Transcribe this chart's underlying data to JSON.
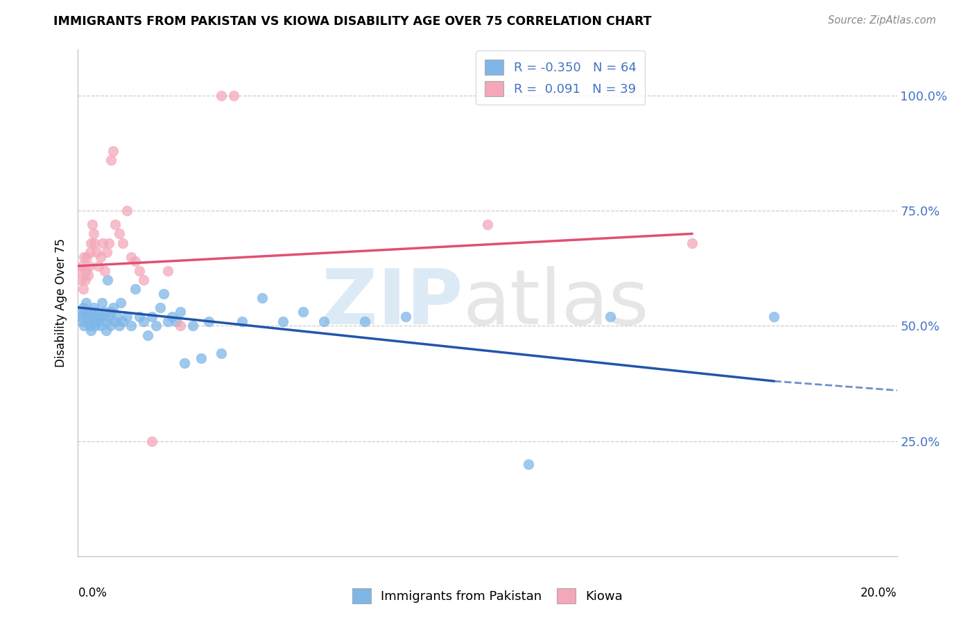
{
  "title": "IMMIGRANTS FROM PAKISTAN VS KIOWA DISABILITY AGE OVER 75 CORRELATION CHART",
  "source": "Source: ZipAtlas.com",
  "ylabel": "Disability Age Over 75",
  "ytick_labels": [
    "25.0%",
    "50.0%",
    "75.0%",
    "100.0%"
  ],
  "ytick_values": [
    25,
    50,
    75,
    100
  ],
  "xlim": [
    0,
    20
  ],
  "ylim": [
    0,
    110
  ],
  "legend_blue_r": "-0.350",
  "legend_blue_n": "64",
  "legend_pink_r": "0.091",
  "legend_pink_n": "39",
  "blue_color": "#7EB6E8",
  "pink_color": "#F4A7B9",
  "blue_line_color": "#2255AA",
  "pink_line_color": "#E05070",
  "blue_dots": [
    [
      0.05,
      53
    ],
    [
      0.08,
      52
    ],
    [
      0.1,
      51
    ],
    [
      0.12,
      54
    ],
    [
      0.15,
      50
    ],
    [
      0.18,
      53
    ],
    [
      0.2,
      55
    ],
    [
      0.22,
      52
    ],
    [
      0.25,
      51
    ],
    [
      0.28,
      50
    ],
    [
      0.3,
      53
    ],
    [
      0.32,
      49
    ],
    [
      0.35,
      52
    ],
    [
      0.38,
      54
    ],
    [
      0.4,
      51
    ],
    [
      0.42,
      50
    ],
    [
      0.45,
      53
    ],
    [
      0.48,
      51
    ],
    [
      0.5,
      52
    ],
    [
      0.55,
      50
    ],
    [
      0.58,
      55
    ],
    [
      0.6,
      52
    ],
    [
      0.65,
      53
    ],
    [
      0.68,
      49
    ],
    [
      0.7,
      51
    ],
    [
      0.72,
      60
    ],
    [
      0.75,
      52
    ],
    [
      0.78,
      50
    ],
    [
      0.8,
      53
    ],
    [
      0.85,
      54
    ],
    [
      0.9,
      51
    ],
    [
      0.95,
      52
    ],
    [
      1.0,
      50
    ],
    [
      1.05,
      55
    ],
    [
      1.1,
      51
    ],
    [
      1.2,
      52
    ],
    [
      1.3,
      50
    ],
    [
      1.4,
      58
    ],
    [
      1.5,
      52
    ],
    [
      1.6,
      51
    ],
    [
      1.7,
      48
    ],
    [
      1.8,
      52
    ],
    [
      1.9,
      50
    ],
    [
      2.0,
      54
    ],
    [
      2.1,
      57
    ],
    [
      2.2,
      51
    ],
    [
      2.3,
      52
    ],
    [
      2.4,
      51
    ],
    [
      2.5,
      53
    ],
    [
      2.6,
      42
    ],
    [
      2.8,
      50
    ],
    [
      3.0,
      43
    ],
    [
      3.2,
      51
    ],
    [
      3.5,
      44
    ],
    [
      4.0,
      51
    ],
    [
      4.5,
      56
    ],
    [
      5.0,
      51
    ],
    [
      5.5,
      53
    ],
    [
      6.0,
      51
    ],
    [
      7.0,
      51
    ],
    [
      8.0,
      52
    ],
    [
      11.0,
      20
    ],
    [
      13.0,
      52
    ],
    [
      17.0,
      52
    ]
  ],
  "pink_dots": [
    [
      0.05,
      62
    ],
    [
      0.08,
      60
    ],
    [
      0.1,
      63
    ],
    [
      0.12,
      58
    ],
    [
      0.15,
      65
    ],
    [
      0.18,
      60
    ],
    [
      0.2,
      62
    ],
    [
      0.22,
      65
    ],
    [
      0.25,
      61
    ],
    [
      0.28,
      63
    ],
    [
      0.3,
      66
    ],
    [
      0.32,
      68
    ],
    [
      0.35,
      72
    ],
    [
      0.38,
      70
    ],
    [
      0.4,
      68
    ],
    [
      0.45,
      66
    ],
    [
      0.5,
      63
    ],
    [
      0.55,
      65
    ],
    [
      0.6,
      68
    ],
    [
      0.65,
      62
    ],
    [
      0.7,
      66
    ],
    [
      0.75,
      68
    ],
    [
      0.8,
      86
    ],
    [
      0.85,
      88
    ],
    [
      0.9,
      72
    ],
    [
      1.0,
      70
    ],
    [
      1.1,
      68
    ],
    [
      1.2,
      75
    ],
    [
      1.3,
      65
    ],
    [
      1.4,
      64
    ],
    [
      1.5,
      62
    ],
    [
      1.6,
      60
    ],
    [
      1.8,
      25
    ],
    [
      2.2,
      62
    ],
    [
      2.5,
      50
    ],
    [
      3.5,
      100
    ],
    [
      3.8,
      100
    ],
    [
      10.0,
      72
    ],
    [
      15.0,
      68
    ]
  ],
  "blue_line_x0": 0,
  "blue_line_y0": 54,
  "blue_line_x1": 17,
  "blue_line_y1": 38,
  "blue_dash_x0": 17,
  "blue_dash_y0": 38,
  "blue_dash_x1": 20,
  "blue_dash_y1": 36,
  "pink_line_x0": 0,
  "pink_line_y0": 63,
  "pink_line_x1": 15,
  "pink_line_y1": 70
}
